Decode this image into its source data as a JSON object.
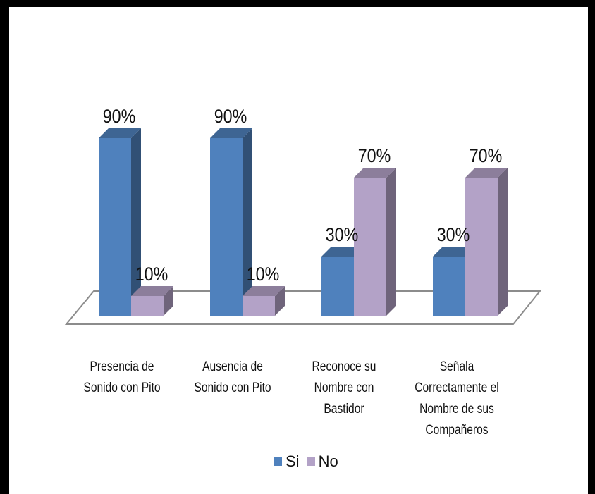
{
  "chart_data": {
    "type": "bar",
    "categories": [
      "Presencia de Sonido con Pito",
      "Ausencia de Sonido con Pito",
      "Reconoce su Nombre con Bastidor",
      "Señala Correctamente el Nombre de sus Compañeros"
    ],
    "category_lines": [
      [
        "Presencia de",
        "Sonido con Pito"
      ],
      [
        "Ausencia de",
        "Sonido con Pito"
      ],
      [
        "Reconoce su",
        "Nombre con",
        "Bastidor"
      ],
      [
        "Señala",
        "Correctamente el",
        "Nombre de sus",
        "Compañeros"
      ]
    ],
    "series": [
      {
        "name": "Si",
        "values": [
          90,
          90,
          30,
          30
        ],
        "labels": [
          "90%",
          "90%",
          "30%",
          "30%"
        ],
        "color": "#4F81BD"
      },
      {
        "name": "No",
        "values": [
          10,
          10,
          70,
          70
        ],
        "labels": [
          "10%",
          "10%",
          "70%",
          "70%"
        ],
        "color": "#B3A2C7"
      }
    ],
    "ylim": [
      0,
      100
    ],
    "legend": "bottom",
    "grid": false,
    "style": "3d-column",
    "border_color": "#000000"
  }
}
